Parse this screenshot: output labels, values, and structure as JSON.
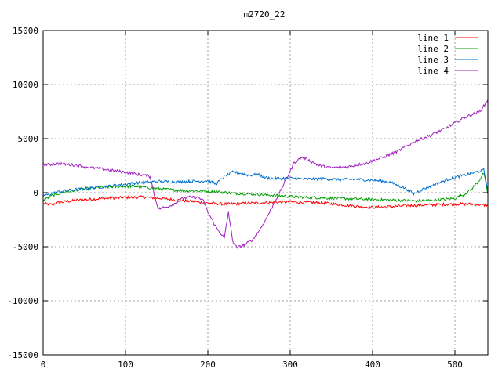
{
  "chart_data": {
    "type": "line",
    "title": "m2720_22",
    "xlabel": "",
    "ylabel": "",
    "xlim": [
      0,
      540
    ],
    "ylim": [
      -15000,
      15000
    ],
    "x_ticks": [
      0,
      100,
      200,
      300,
      400,
      500
    ],
    "y_ticks": [
      -15000,
      -10000,
      -5000,
      0,
      5000,
      10000,
      15000
    ],
    "grid": true,
    "legend_position": "top-right",
    "series": [
      {
        "name": "line 1",
        "color": "#ff0000",
        "points": [
          [
            0,
            -1000
          ],
          [
            10,
            -1100
          ],
          [
            20,
            -900
          ],
          [
            30,
            -800
          ],
          [
            40,
            -700
          ],
          [
            60,
            -600
          ],
          [
            80,
            -500
          ],
          [
            100,
            -450
          ],
          [
            120,
            -400
          ],
          [
            140,
            -500
          ],
          [
            160,
            -650
          ],
          [
            180,
            -800
          ],
          [
            200,
            -950
          ],
          [
            220,
            -1050
          ],
          [
            240,
            -1000
          ],
          [
            260,
            -950
          ],
          [
            280,
            -900
          ],
          [
            300,
            -850
          ],
          [
            320,
            -900
          ],
          [
            340,
            -950
          ],
          [
            360,
            -1100
          ],
          [
            380,
            -1250
          ],
          [
            400,
            -1350
          ],
          [
            420,
            -1300
          ],
          [
            440,
            -1200
          ],
          [
            460,
            -1150
          ],
          [
            480,
            -1100
          ],
          [
            500,
            -1050
          ],
          [
            520,
            -1050
          ],
          [
            530,
            -1100
          ],
          [
            540,
            -1200
          ]
        ]
      },
      {
        "name": "line 2",
        "color": "#00a000",
        "points": [
          [
            0,
            -700
          ],
          [
            10,
            -300
          ],
          [
            20,
            -50
          ],
          [
            30,
            100
          ],
          [
            50,
            350
          ],
          [
            70,
            500
          ],
          [
            90,
            550
          ],
          [
            110,
            600
          ],
          [
            130,
            450
          ],
          [
            150,
            300
          ],
          [
            170,
            200
          ],
          [
            190,
            150
          ],
          [
            210,
            100
          ],
          [
            230,
            -50
          ],
          [
            250,
            -100
          ],
          [
            270,
            -200
          ],
          [
            290,
            -300
          ],
          [
            310,
            -400
          ],
          [
            330,
            -450
          ],
          [
            350,
            -500
          ],
          [
            370,
            -550
          ],
          [
            390,
            -600
          ],
          [
            410,
            -650
          ],
          [
            430,
            -700
          ],
          [
            450,
            -750
          ],
          [
            470,
            -700
          ],
          [
            490,
            -600
          ],
          [
            500,
            -500
          ],
          [
            510,
            -200
          ],
          [
            520,
            300
          ],
          [
            530,
            1200
          ],
          [
            535,
            1800
          ],
          [
            540,
            -100
          ]
        ]
      },
      {
        "name": "line 3",
        "color": "#0070d0",
        "points": [
          [
            0,
            -300
          ],
          [
            10,
            -100
          ],
          [
            20,
            100
          ],
          [
            40,
            300
          ],
          [
            60,
            450
          ],
          [
            80,
            600
          ],
          [
            100,
            800
          ],
          [
            120,
            950
          ],
          [
            140,
            1050
          ],
          [
            160,
            1000
          ],
          [
            180,
            1050
          ],
          [
            200,
            1100
          ],
          [
            210,
            800
          ],
          [
            220,
            1500
          ],
          [
            230,
            1900
          ],
          [
            240,
            1800
          ],
          [
            250,
            1600
          ],
          [
            260,
            1700
          ],
          [
            270,
            1400
          ],
          [
            280,
            1300
          ],
          [
            300,
            1350
          ],
          [
            320,
            1250
          ],
          [
            340,
            1300
          ],
          [
            360,
            1200
          ],
          [
            380,
            1250
          ],
          [
            400,
            1150
          ],
          [
            420,
            1000
          ],
          [
            430,
            700
          ],
          [
            440,
            400
          ],
          [
            450,
            -100
          ],
          [
            460,
            300
          ],
          [
            470,
            600
          ],
          [
            480,
            900
          ],
          [
            490,
            1200
          ],
          [
            500,
            1400
          ],
          [
            510,
            1600
          ],
          [
            520,
            1800
          ],
          [
            530,
            2000
          ],
          [
            535,
            2100
          ],
          [
            540,
            300
          ]
        ]
      },
      {
        "name": "line 4",
        "color": "#a020c0",
        "points": [
          [
            0,
            2600
          ],
          [
            10,
            2600
          ],
          [
            20,
            2700
          ],
          [
            30,
            2600
          ],
          [
            40,
            2550
          ],
          [
            50,
            2400
          ],
          [
            60,
            2300
          ],
          [
            70,
            2200
          ],
          [
            80,
            2100
          ],
          [
            90,
            2000
          ],
          [
            100,
            1900
          ],
          [
            110,
            1750
          ],
          [
            120,
            1650
          ],
          [
            130,
            1500
          ],
          [
            135,
            -200
          ],
          [
            140,
            -1500
          ],
          [
            150,
            -1300
          ],
          [
            160,
            -1000
          ],
          [
            170,
            -500
          ],
          [
            180,
            -400
          ],
          [
            190,
            -500
          ],
          [
            195,
            -800
          ],
          [
            200,
            -1800
          ],
          [
            210,
            -3200
          ],
          [
            220,
            -4200
          ],
          [
            225,
            -1800
          ],
          [
            230,
            -4400
          ],
          [
            235,
            -5100
          ],
          [
            245,
            -4800
          ],
          [
            255,
            -4300
          ],
          [
            265,
            -3200
          ],
          [
            275,
            -1800
          ],
          [
            285,
            -300
          ],
          [
            295,
            1200
          ],
          [
            305,
            2800
          ],
          [
            315,
            3300
          ],
          [
            325,
            2900
          ],
          [
            335,
            2500
          ],
          [
            350,
            2300
          ],
          [
            370,
            2400
          ],
          [
            390,
            2700
          ],
          [
            410,
            3200
          ],
          [
            430,
            3800
          ],
          [
            450,
            4700
          ],
          [
            470,
            5300
          ],
          [
            490,
            6000
          ],
          [
            510,
            6900
          ],
          [
            530,
            7500
          ],
          [
            535,
            8000
          ],
          [
            540,
            8600
          ]
        ]
      }
    ]
  }
}
